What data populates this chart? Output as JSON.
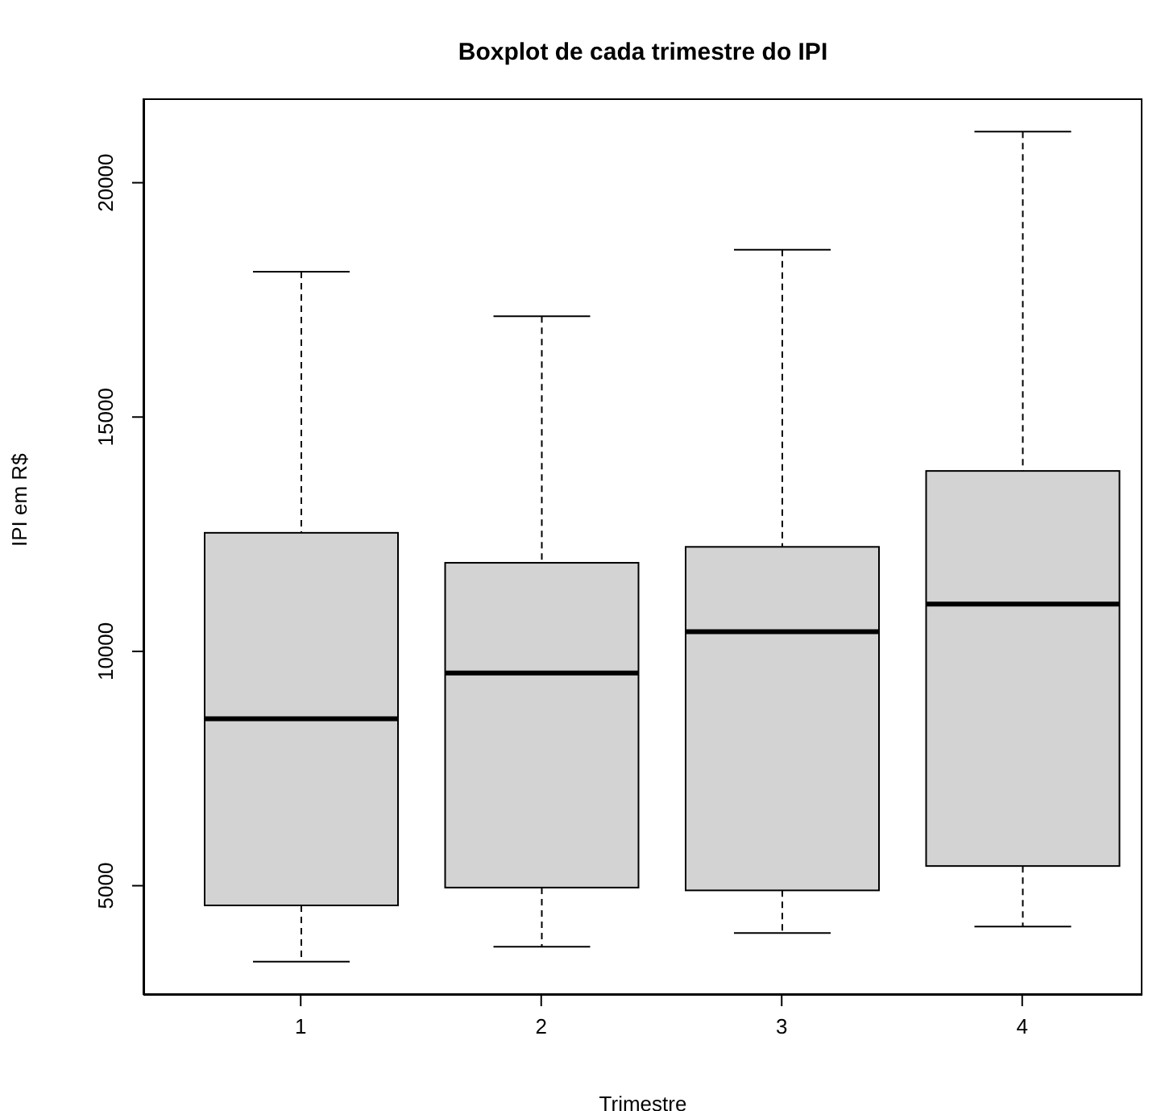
{
  "chart_data": {
    "type": "box",
    "title": "Boxplot de cada trimestre do IPI",
    "xlabel": "Trimestre",
    "ylabel": "IPI em R$",
    "categories": [
      "1",
      "2",
      "3",
      "4"
    ],
    "series": [
      {
        "color": "#d3d3d3",
        "boxes": [
          {
            "low": 3380,
            "q1": 4580,
            "median": 8560,
            "q3": 12530,
            "high": 18100
          },
          {
            "low": 3700,
            "q1": 4960,
            "median": 9540,
            "q3": 11890,
            "high": 17150
          },
          {
            "low": 3990,
            "q1": 4900,
            "median": 10420,
            "q3": 12230,
            "high": 18570
          },
          {
            "low": 4130,
            "q1": 5420,
            "median": 11010,
            "q3": 13850,
            "high": 21090
          }
        ]
      }
    ],
    "ylim": [
      2670,
      21800
    ],
    "yticks": [
      5000,
      10000,
      15000,
      20000
    ]
  }
}
